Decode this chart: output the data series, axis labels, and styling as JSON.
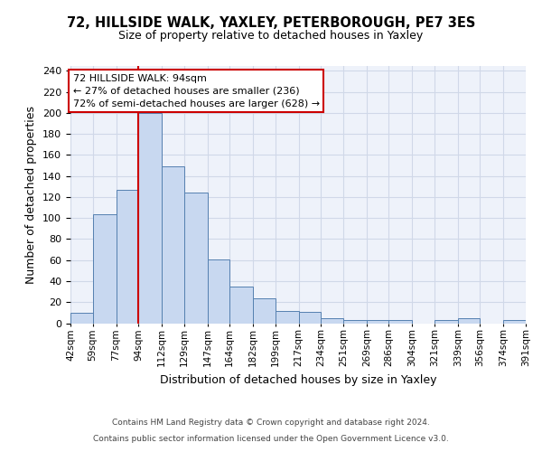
{
  "title1": "72, HILLSIDE WALK, YAXLEY, PETERBOROUGH, PE7 3ES",
  "title2": "Size of property relative to detached houses in Yaxley",
  "xlabel": "Distribution of detached houses by size in Yaxley",
  "ylabel": "Number of detached properties",
  "bin_edges": [
    42,
    59,
    77,
    94,
    112,
    129,
    147,
    164,
    182,
    199,
    217,
    234,
    251,
    269,
    286,
    304,
    321,
    339,
    356,
    374,
    391
  ],
  "bar_heights": [
    10,
    104,
    127,
    200,
    149,
    124,
    61,
    35,
    24,
    12,
    11,
    5,
    3,
    3,
    3,
    0,
    3,
    5,
    0,
    3
  ],
  "bar_facecolor": "#c8d8f0",
  "bar_edgecolor": "#5580b0",
  "grid_color": "#d0d8e8",
  "background_color": "#eef2fa",
  "red_line_x": 94,
  "annotation_title": "72 HILLSIDE WALK: 94sqm",
  "annotation_line1": "← 27% of detached houses are smaller (236)",
  "annotation_line2": "72% of semi-detached houses are larger (628) →",
  "annotation_box_color": "#ffffff",
  "annotation_box_edge": "#cc0000",
  "red_line_color": "#cc0000",
  "footer1": "Contains HM Land Registry data © Crown copyright and database right 2024.",
  "footer2": "Contains public sector information licensed under the Open Government Licence v3.0.",
  "yticks": [
    0,
    20,
    40,
    60,
    80,
    100,
    120,
    140,
    160,
    180,
    200,
    220,
    240
  ],
  "ylim": [
    0,
    245
  ]
}
